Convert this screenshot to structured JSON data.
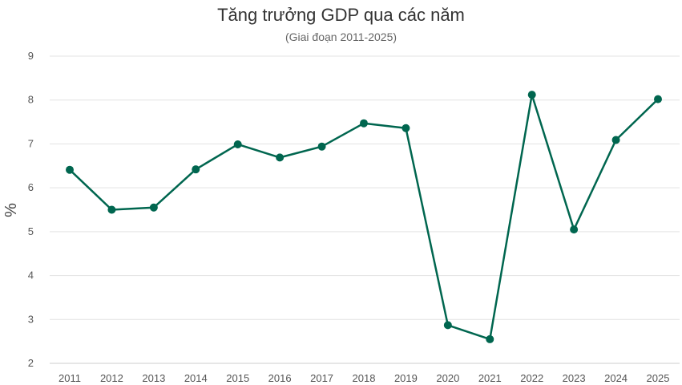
{
  "chart_data": {
    "type": "line",
    "title": "Tăng trưởng GDP qua các năm",
    "subtitle": "(Giai đoạn 2011-2025)",
    "xlabel": "",
    "ylabel": "%",
    "categories": [
      "2011",
      "2012",
      "2013",
      "2014",
      "2015",
      "2016",
      "2017",
      "2018",
      "2019",
      "2020",
      "2021",
      "2022",
      "2023",
      "2024",
      "2025"
    ],
    "series": [
      {
        "values": [
          6.41,
          5.5,
          5.55,
          6.42,
          6.99,
          6.69,
          6.94,
          7.47,
          7.36,
          2.87,
          2.55,
          8.12,
          5.05,
          7.09,
          8.02
        ]
      }
    ],
    "ylim": [
      2,
      9
    ],
    "yticks": [
      2,
      3,
      4,
      5,
      6,
      7,
      8,
      9
    ],
    "grid": true,
    "legend": "none",
    "color": "#00664f"
  }
}
